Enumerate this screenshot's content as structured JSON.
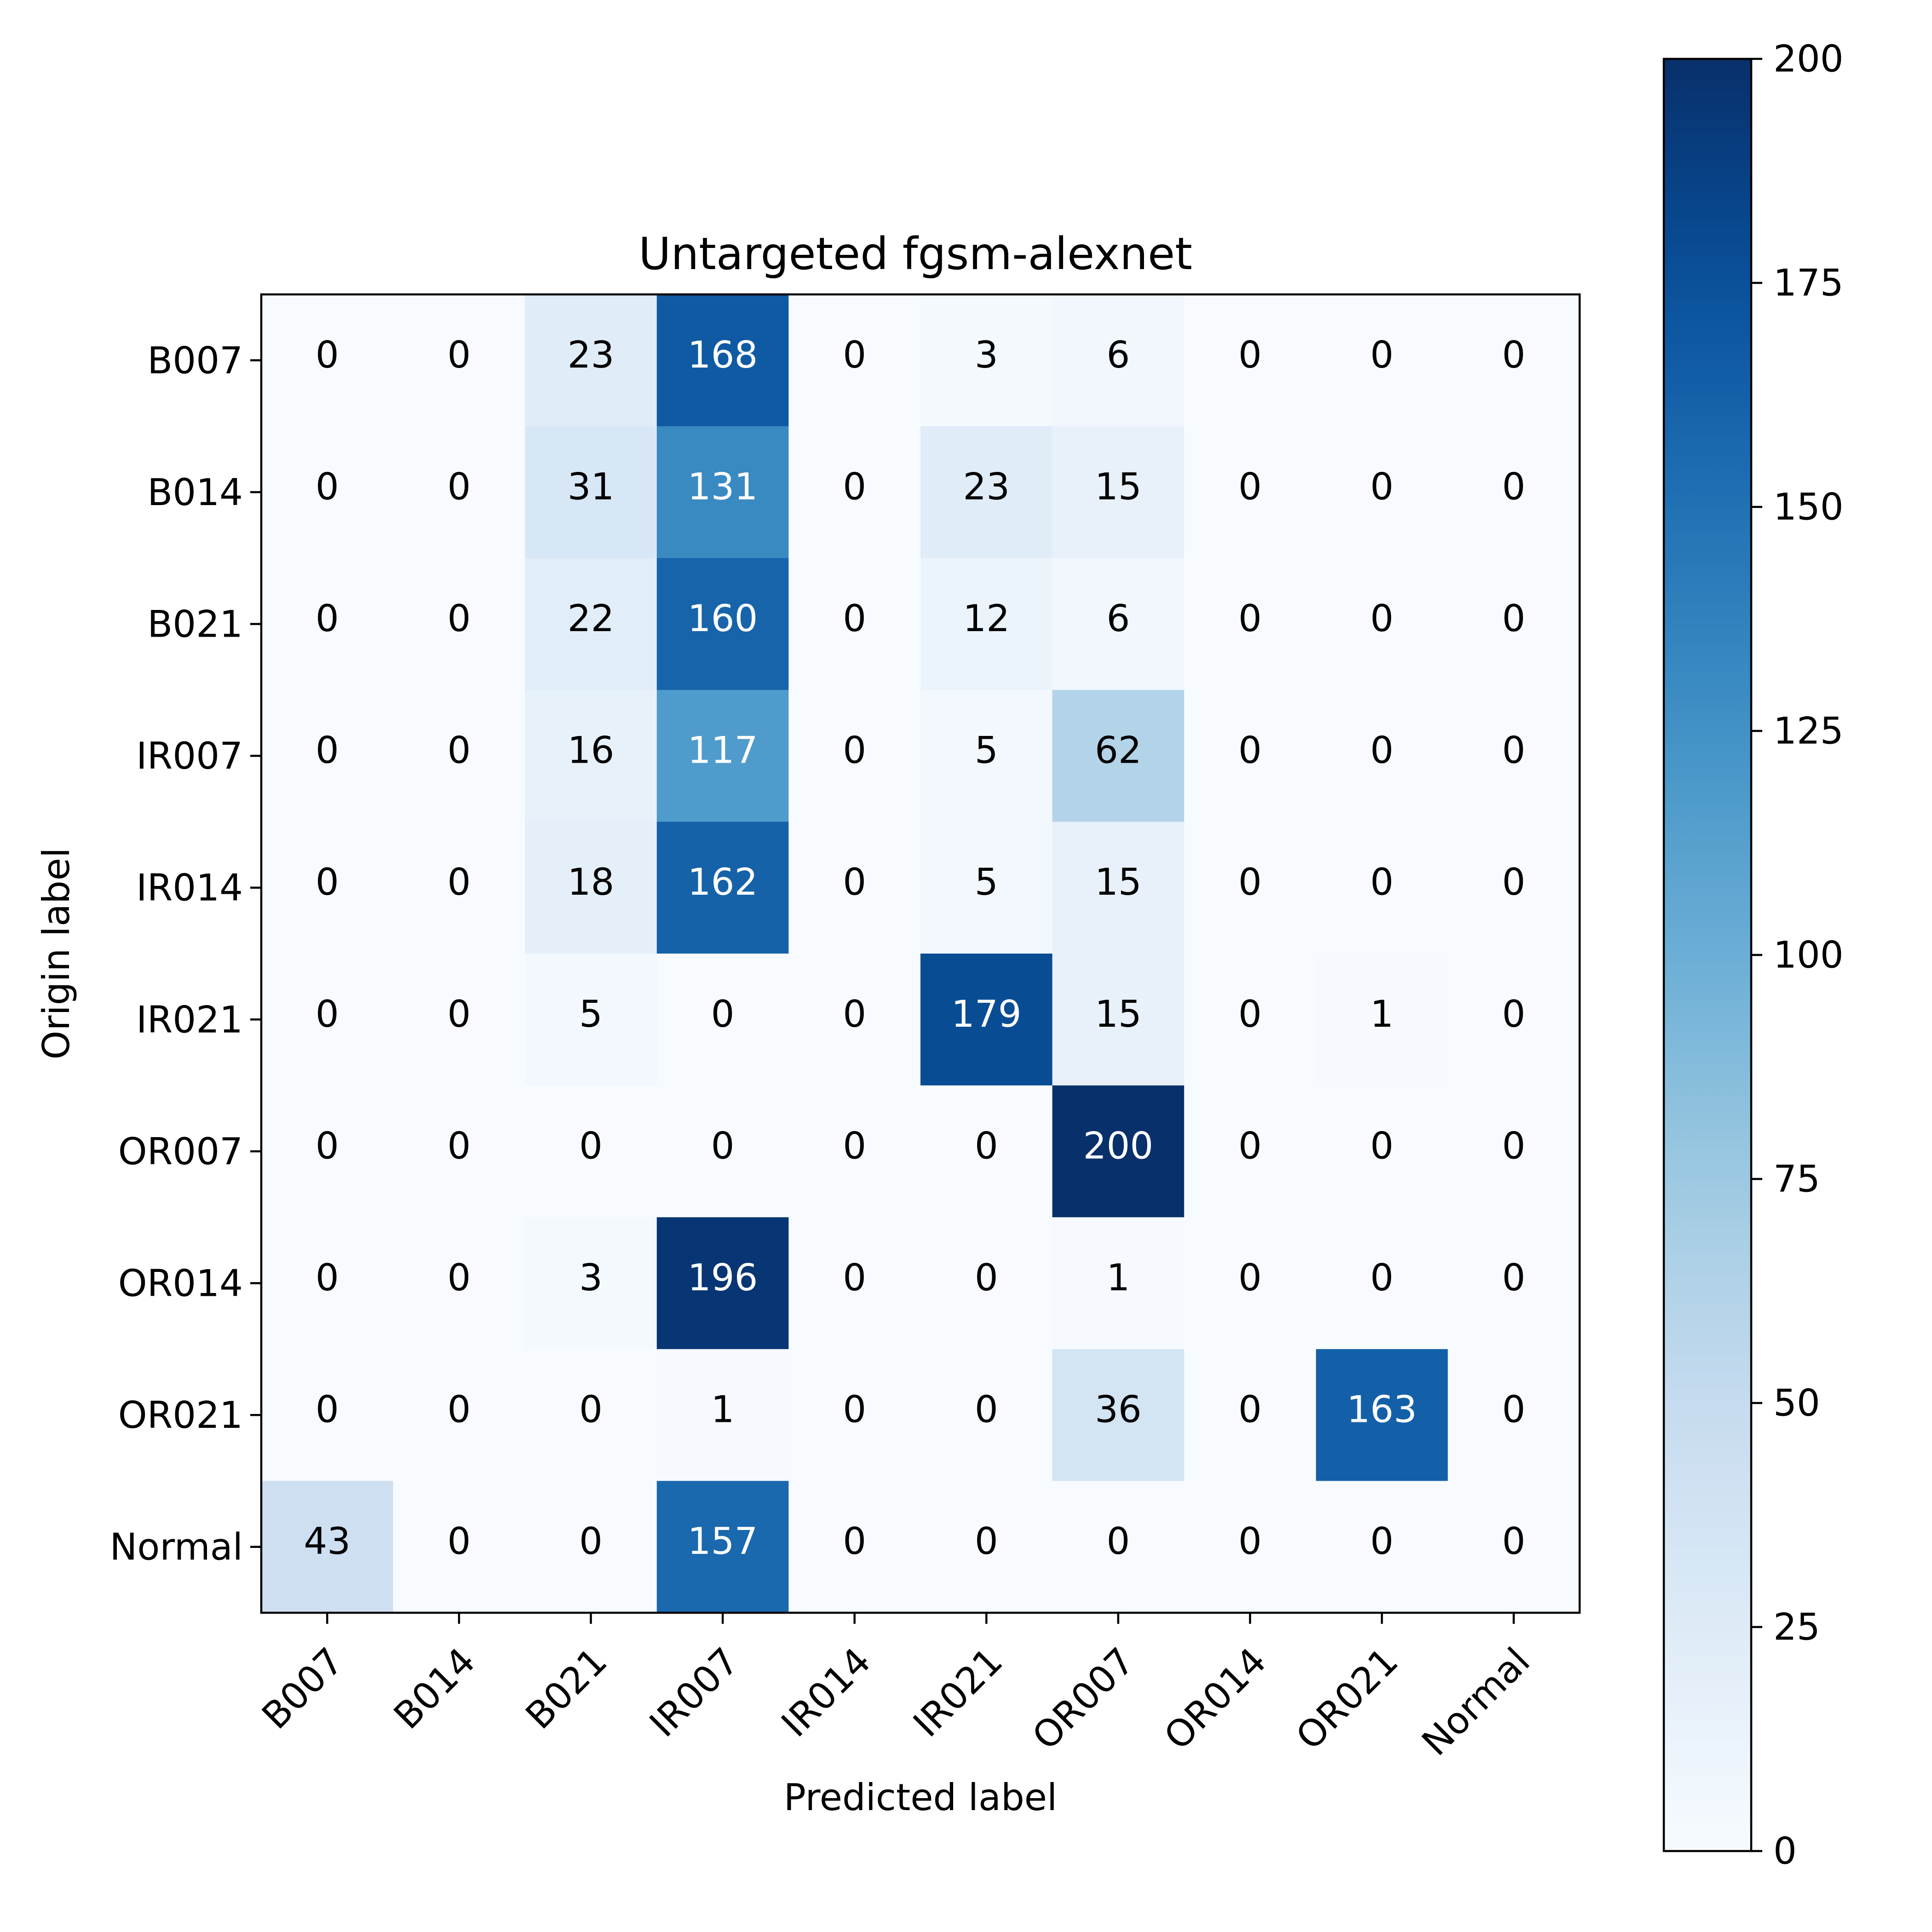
{
  "chart_data": {
    "type": "heatmap",
    "title": "Untargeted fgsm-alexnet",
    "xlabel": "Predicted label",
    "ylabel": "Origin label",
    "x_categories": [
      "B007",
      "B014",
      "B021",
      "IR007",
      "IR014",
      "IR021",
      "OR007",
      "OR014",
      "OR021",
      "Normal"
    ],
    "y_categories": [
      "B007",
      "B014",
      "B021",
      "IR007",
      "IR014",
      "IR021",
      "OR007",
      "OR014",
      "OR021",
      "Normal"
    ],
    "values": [
      [
        0,
        0,
        23,
        168,
        0,
        3,
        6,
        0,
        0,
        0
      ],
      [
        0,
        0,
        31,
        131,
        0,
        23,
        15,
        0,
        0,
        0
      ],
      [
        0,
        0,
        22,
        160,
        0,
        12,
        6,
        0,
        0,
        0
      ],
      [
        0,
        0,
        16,
        117,
        0,
        5,
        62,
        0,
        0,
        0
      ],
      [
        0,
        0,
        18,
        162,
        0,
        5,
        15,
        0,
        0,
        0
      ],
      [
        0,
        0,
        5,
        0,
        0,
        179,
        15,
        0,
        1,
        0
      ],
      [
        0,
        0,
        0,
        0,
        0,
        0,
        200,
        0,
        0,
        0
      ],
      [
        0,
        0,
        3,
        196,
        0,
        0,
        1,
        0,
        0,
        0
      ],
      [
        0,
        0,
        0,
        1,
        0,
        0,
        36,
        0,
        163,
        0
      ],
      [
        43,
        0,
        0,
        157,
        0,
        0,
        0,
        0,
        0,
        0
      ]
    ],
    "colormap": "Blues",
    "colorbar": {
      "range": [
        0,
        200
      ],
      "ticks": [
        "0",
        "25",
        "50",
        "75",
        "100",
        "125",
        "150",
        "175",
        "200"
      ]
    },
    "text_colors": {
      "dark": "#000000",
      "light": "#ffffff"
    }
  }
}
